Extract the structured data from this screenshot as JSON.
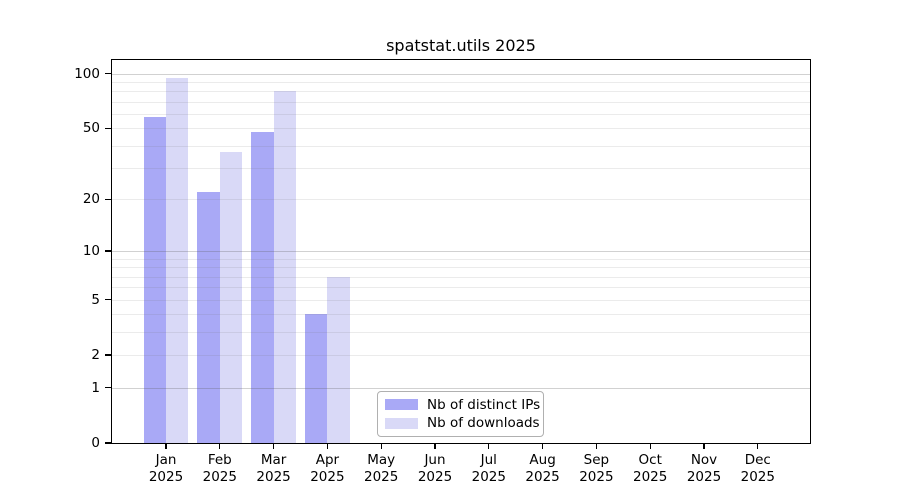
{
  "title": "spatstat.utils 2025",
  "chart_data": {
    "type": "bar",
    "title": "spatstat.utils 2025",
    "year": "2025",
    "categories": [
      "Jan",
      "Feb",
      "Mar",
      "Apr",
      "May",
      "Jun",
      "Jul",
      "Aug",
      "Sep",
      "Oct",
      "Nov",
      "Dec"
    ],
    "series": [
      {
        "name": "Nb of distinct IPs",
        "color": "#a9a9f6",
        "values": [
          58,
          22,
          48,
          4,
          null,
          null,
          null,
          null,
          null,
          null,
          null,
          null
        ]
      },
      {
        "name": "Nb of downloads",
        "color": "#d9d9f7",
        "values": [
          95,
          37,
          80,
          7,
          null,
          null,
          null,
          null,
          null,
          null,
          null,
          null
        ]
      }
    ],
    "y_axis": {
      "scale": "log1p",
      "tick_values": [
        0,
        1,
        2,
        5,
        10,
        20,
        50,
        100
      ],
      "minor_gridlines": [
        2,
        3,
        4,
        5,
        6,
        7,
        8,
        9,
        20,
        30,
        40,
        50,
        60,
        70,
        80,
        90
      ],
      "major_gridlines": [
        1,
        10,
        100
      ],
      "max_log1p": 4.7875
    },
    "x_axis": {
      "label_line2": "2025"
    },
    "legend": {
      "position": "bottom-center"
    },
    "grid": true,
    "background": "#ffffff"
  }
}
